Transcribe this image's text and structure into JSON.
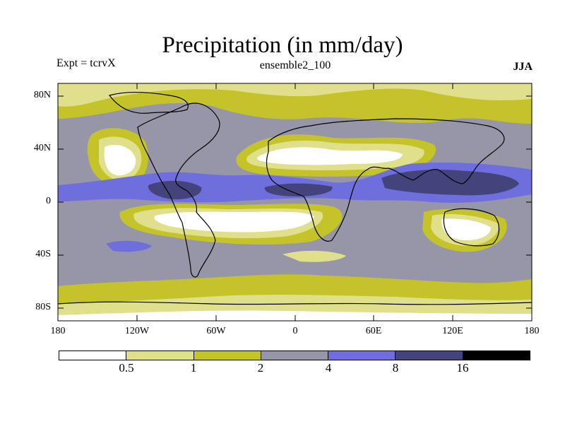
{
  "title": "Precipitation (in mm/day)",
  "subtitle_left": "Expt = tcrvX",
  "subtitle_center": "ensemble2_100",
  "subtitle_right": "JJA",
  "lat_labels": [
    "80N",
    "40N",
    "0",
    "40S",
    "80S"
  ],
  "lon_labels": [
    "180",
    "120W",
    "60W",
    "0",
    "60E",
    "120E",
    "180"
  ],
  "colorbar": {
    "colors": [
      "#ffffff",
      "#e0e08c",
      "#c4c42a",
      "#9696a8",
      "#6e6edc",
      "#44447c",
      "#000000"
    ],
    "labels": [
      "0.5",
      "1",
      "2",
      "4",
      "8",
      "16"
    ]
  }
}
